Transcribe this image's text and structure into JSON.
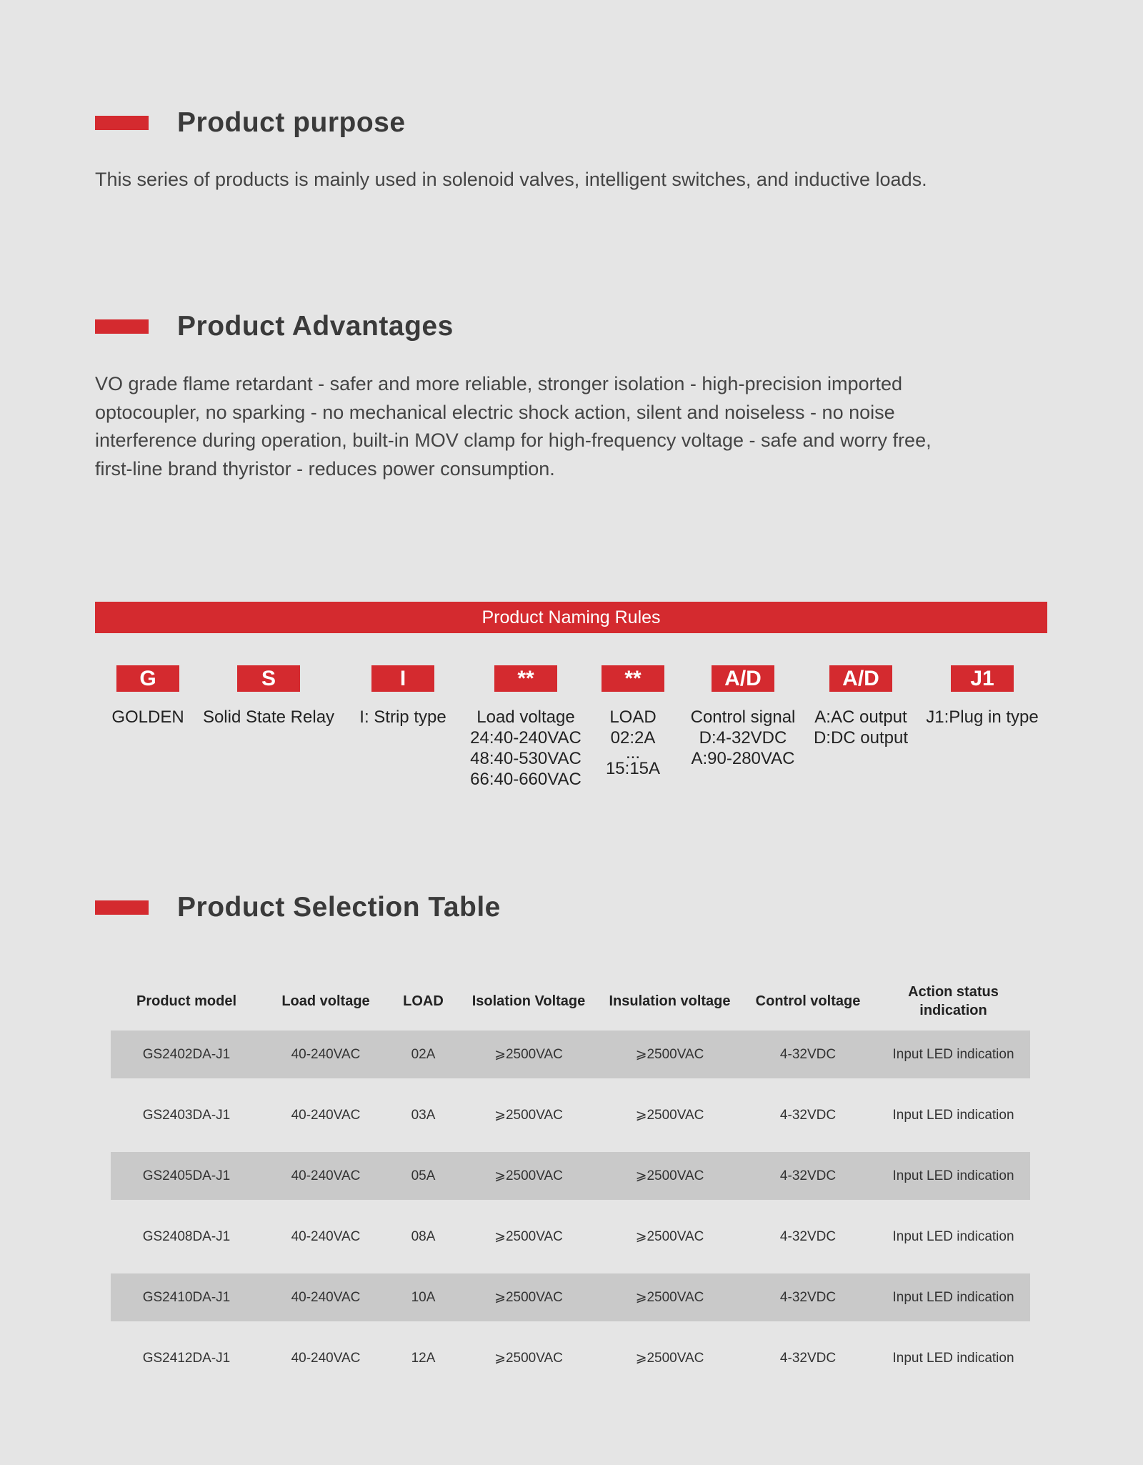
{
  "purpose": {
    "title": "Product purpose",
    "text": "This series of products is mainly used in solenoid valves, intelligent switches, and inductive loads."
  },
  "advantages": {
    "title": "Product Advantages",
    "lines": [
      "VO grade flame retardant - safer and more reliable, stronger isolation - high-precision imported",
      "optocoupler, no sparking - no mechanical electric shock action, silent and noiseless - no noise",
      "interference during operation, built-in MOV clamp for high-frequency voltage - safe and worry free,",
      "first-line brand thyristor - reduces power consumption."
    ]
  },
  "naming": {
    "title": "Product Naming Rules",
    "codes": [
      {
        "code": "G",
        "lines": [
          "GOLDEN"
        ]
      },
      {
        "code": "S",
        "lines": [
          "Solid State Relay"
        ]
      },
      {
        "code": "I",
        "lines": [
          "I: Strip type"
        ]
      },
      {
        "code": "**",
        "lines": [
          "Load voltage",
          "24:40-240VAC",
          "48:40-530VAC",
          "66:40-660VAC"
        ]
      },
      {
        "code": "**",
        "lines": [
          "LOAD",
          "02:2A",
          "...",
          "15:15A"
        ]
      },
      {
        "code": "A/D",
        "lines": [
          "Control signal",
          "D:4-32VDC",
          "A:90-280VAC"
        ]
      },
      {
        "code": "A/D",
        "lines": [
          "A:AC output",
          "D:DC output"
        ]
      },
      {
        "code": "J1",
        "lines": [
          "J1:Plug in type"
        ]
      }
    ]
  },
  "selection": {
    "title": "Product Selection Table",
    "headers": [
      "Product model",
      "Load voltage",
      "LOAD",
      "Isolation Voltage",
      "Insulation voltage",
      "Control voltage",
      "Action status indication"
    ],
    "rows": [
      [
        "GS2402DA-J1",
        "40-240VAC",
        "02A",
        "⩾2500VAC",
        "⩾2500VAC",
        "4-32VDC",
        "Input LED indication"
      ],
      [
        "GS2403DA-J1",
        "40-240VAC",
        "03A",
        "⩾2500VAC",
        "⩾2500VAC",
        "4-32VDC",
        "Input LED indication"
      ],
      [
        "GS2405DA-J1",
        "40-240VAC",
        "05A",
        "⩾2500VAC",
        "⩾2500VAC",
        "4-32VDC",
        "Input LED indication"
      ],
      [
        "GS2408DA-J1",
        "40-240VAC",
        "08A",
        "⩾2500VAC",
        "⩾2500VAC",
        "4-32VDC",
        "Input LED indication"
      ],
      [
        "GS2410DA-J1",
        "40-240VAC",
        "10A",
        "⩾2500VAC",
        "⩾2500VAC",
        "4-32VDC",
        "Input LED indication"
      ],
      [
        "GS2412DA-J1",
        "40-240VAC",
        "12A",
        "⩾2500VAC",
        "⩾2500VAC",
        "4-32VDC",
        "Input LED indication"
      ]
    ]
  },
  "colors": {
    "accent": "#d42a2f",
    "background": "#e5e5e5",
    "row_shade": "#c9c9c9"
  }
}
